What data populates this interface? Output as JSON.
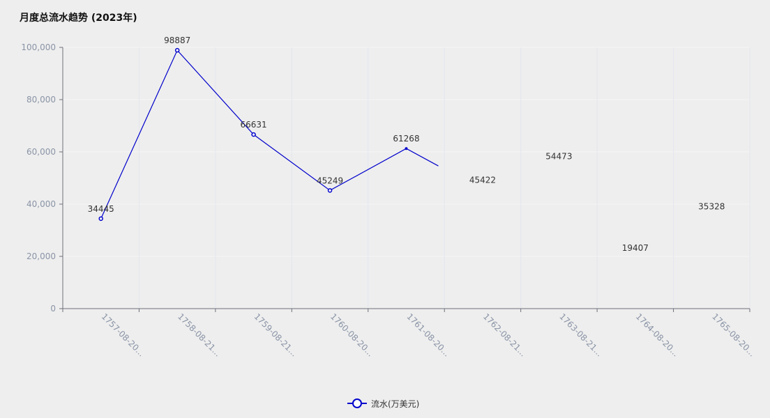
{
  "chart_data": {
    "type": "line",
    "title": "月度总流水趋势 (2023年)",
    "categories": [
      "1757-08-20...",
      "1758-08-21...",
      "1759-08-21...",
      "1760-08-20...",
      "1761-08-20...",
      "1762-08-21...",
      "1763-08-21...",
      "1764-08-20...",
      "1765-08-20..."
    ],
    "series": [
      {
        "name": "流水(万美元)",
        "color": "#0000cc",
        "values": [
          34445,
          98887,
          66631,
          45249,
          61268,
          45422,
          54473,
          19407,
          35328
        ],
        "line_drawn_through_index": 4.42,
        "marker_indices": [
          0,
          1,
          2,
          3
        ],
        "small_marker_indices": [
          4
        ]
      }
    ],
    "ylim": [
      0,
      100000
    ],
    "yticks": [
      0,
      20000,
      40000,
      60000,
      80000,
      100000
    ],
    "ytick_labels": [
      "0",
      "20,000",
      "40,000",
      "60,000",
      "80,000",
      "100,000"
    ],
    "xlabel": "",
    "ylabel": "",
    "grid": true,
    "legend_position": "bottom-center"
  }
}
